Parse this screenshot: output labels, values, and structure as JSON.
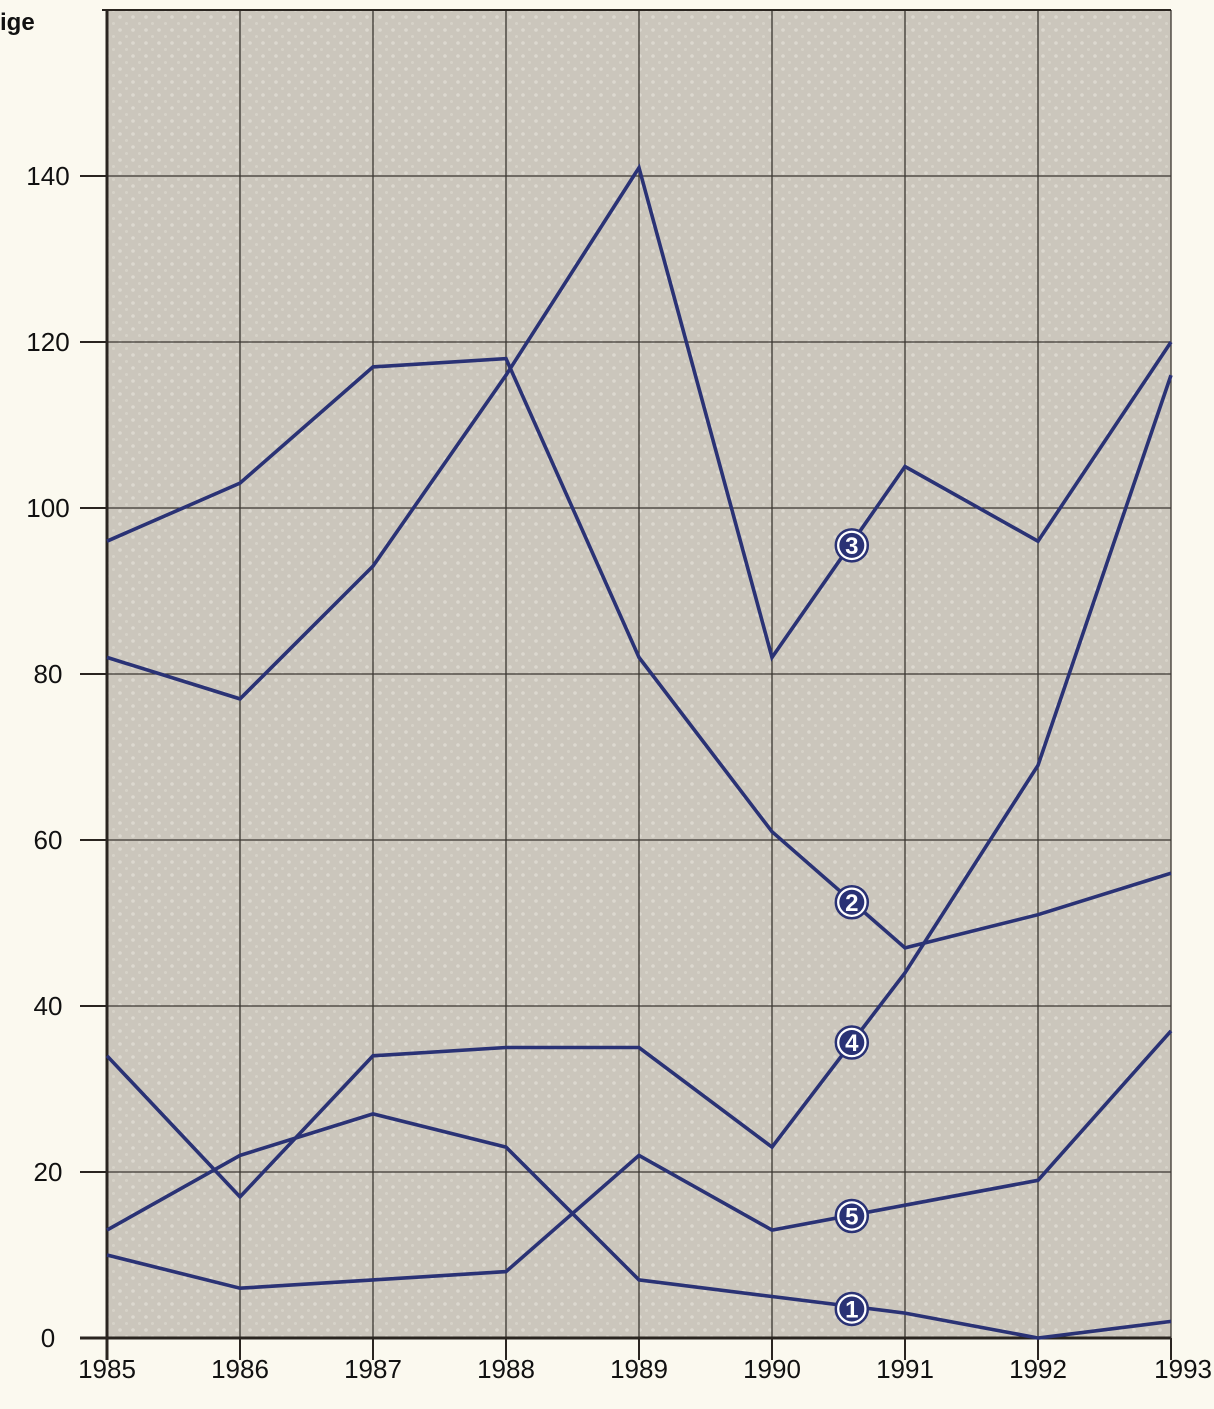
{
  "chart_data": {
    "type": "line",
    "title": "",
    "xlabel": "",
    "ylabel": "ige",
    "x": [
      "1985",
      "1986",
      "1987",
      "1988",
      "1989",
      "1990",
      "1991",
      "1992",
      "1993"
    ],
    "xlim": [
      1985,
      1993
    ],
    "ylim": [
      0,
      160
    ],
    "yticks": [
      0,
      20,
      40,
      60,
      80,
      100,
      120,
      140
    ],
    "grid": true,
    "legend": "none",
    "series": [
      {
        "name": "1",
        "values": [
          10,
          6,
          7,
          8,
          22,
          13,
          16,
          19,
          37
        ]
      },
      {
        "name": "2",
        "values": [
          96,
          103,
          117,
          118,
          82,
          61,
          47,
          51,
          56
        ]
      },
      {
        "name": "3",
        "values": [
          82,
          77,
          93,
          116,
          141,
          82,
          105,
          96,
          120
        ]
      },
      {
        "name": "4",
        "values": [
          34,
          17,
          34,
          35,
          35,
          23,
          44,
          69,
          116
        ]
      },
      {
        "name": "5",
        "values": [
          13,
          22,
          27,
          23,
          7,
          5,
          3,
          0,
          2
        ]
      }
    ],
    "markers": [
      {
        "label": "1",
        "x": 1990.6,
        "y": 3.5
      },
      {
        "label": "2",
        "x": 1990.6,
        "y": 52.5
      },
      {
        "label": "3",
        "x": 1990.6,
        "y": 95.5
      },
      {
        "label": "4",
        "x": 1990.6,
        "y": 35.6
      },
      {
        "label": "5",
        "x": 1990.6,
        "y": 14.7
      }
    ],
    "colors": {
      "line": "#2a3275",
      "plot_bg": "#cbc6bc",
      "plot_dots": "#d9d5cb",
      "grid": "#3a3530",
      "axis": "#2a2520",
      "page_bg": "#fbf9ef"
    }
  }
}
